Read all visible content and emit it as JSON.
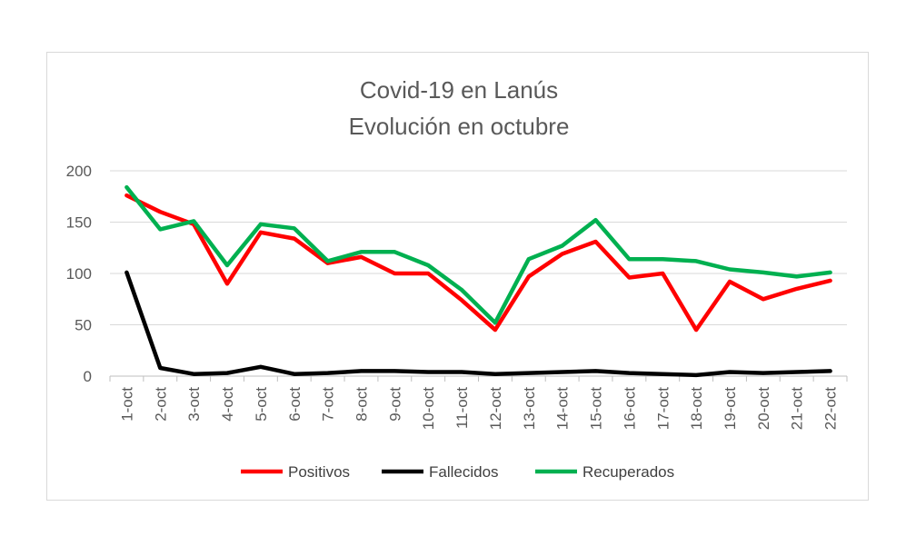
{
  "chart_data": {
    "type": "line",
    "title_lines": [
      "Covid-19 en Lanús",
      "Evolución en octubre"
    ],
    "categories": [
      "1-oct",
      "2-oct",
      "3-oct",
      "4-oct",
      "5-oct",
      "6-oct",
      "7-oct",
      "8-oct",
      "9-oct",
      "10-oct",
      "11-oct",
      "12-oct",
      "13-oct",
      "14-oct",
      "15-oct",
      "16-oct",
      "17-oct",
      "18-oct",
      "19-oct",
      "20-oct",
      "21-oct",
      "22-oct"
    ],
    "y_ticks": [
      "0",
      "50",
      "100",
      "150",
      "200"
    ],
    "ylim": [
      0,
      200
    ],
    "grid": true,
    "legend_position": "bottom",
    "series": [
      {
        "name": "Positivos",
        "color": "#ff0000",
        "values": [
          176,
          160,
          148,
          90,
          140,
          134,
          110,
          116,
          100,
          100,
          74,
          45,
          97,
          119,
          131,
          96,
          100,
          45,
          92,
          75,
          85,
          93
        ]
      },
      {
        "name": "Fallecidos",
        "color": "#000000",
        "values": [
          101,
          8,
          2,
          3,
          9,
          2,
          3,
          5,
          5,
          4,
          4,
          2,
          3,
          4,
          5,
          3,
          2,
          1,
          4,
          3,
          4,
          5
        ]
      },
      {
        "name": "Recuperados",
        "color": "#00b050",
        "values": [
          184,
          143,
          151,
          108,
          148,
          144,
          112,
          121,
          121,
          108,
          84,
          52,
          114,
          127,
          152,
          114,
          114,
          112,
          104,
          101,
          97,
          101
        ]
      }
    ]
  }
}
